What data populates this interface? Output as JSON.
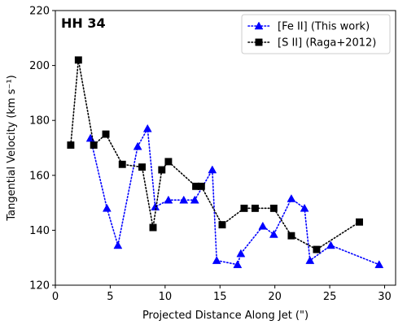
{
  "chart_data": {
    "type": "line",
    "annotation": "HH 34",
    "xlabel": "Projected Distance Along Jet (\")",
    "ylabel": "Tangential Velocity (km s⁻¹)",
    "xlim": [
      0,
      31
    ],
    "ylim": [
      120,
      220
    ],
    "xticks": [
      0,
      5,
      10,
      15,
      20,
      25,
      30
    ],
    "yticks": [
      120,
      140,
      160,
      180,
      200,
      220
    ],
    "legend_position": "top-right",
    "series": [
      {
        "name": "[Fe II] (This work)",
        "color": "#0000ff",
        "marker": "triangle",
        "linestyle": "dotted",
        "x": [
          3.2,
          4.7,
          5.7,
          7.5,
          8.4,
          9.1,
          10.3,
          11.7,
          12.7,
          14.3,
          14.7,
          16.6,
          16.9,
          18.9,
          19.9,
          21.5,
          22.7,
          23.2,
          25.1,
          29.5
        ],
        "y": [
          173.5,
          148,
          134.5,
          170.5,
          177,
          148.5,
          151,
          151,
          151,
          162,
          129,
          127.5,
          131.5,
          141.5,
          138.5,
          151.5,
          148,
          129,
          134.5,
          127.5
        ]
      },
      {
        "name": "[S II] (Raga+2012)",
        "color": "#000000",
        "marker": "square",
        "linestyle": "dotted",
        "x": [
          1.4,
          2.1,
          3.5,
          4.6,
          6.1,
          7.9,
          8.9,
          9.7,
          10.3,
          12.8,
          13.3,
          15.2,
          17.2,
          18.2,
          19.9,
          21.5,
          23.8,
          27.7
        ],
        "y": [
          171,
          202,
          171,
          175,
          164,
          163,
          141,
          162,
          165,
          156,
          156,
          142,
          148,
          148,
          148,
          138,
          133,
          143
        ]
      }
    ]
  }
}
